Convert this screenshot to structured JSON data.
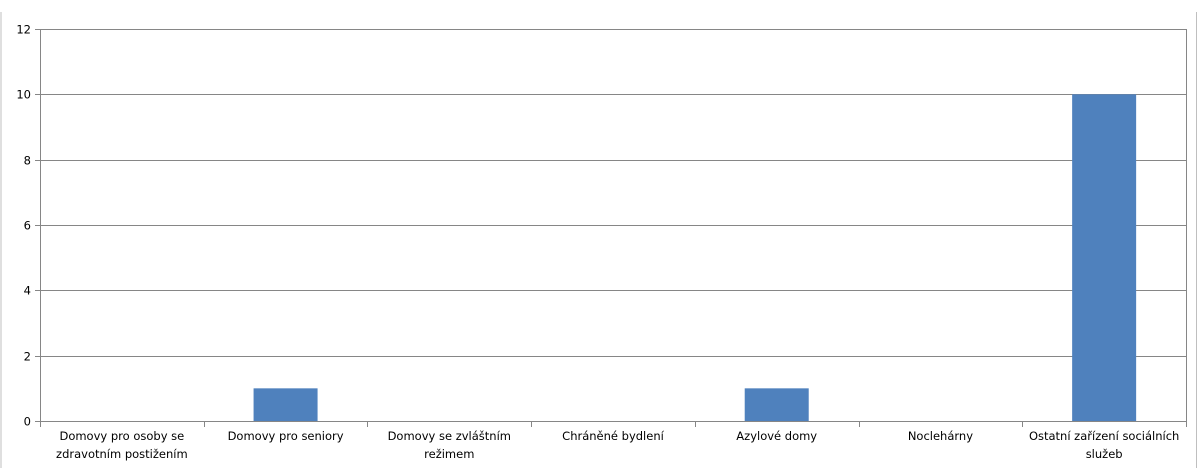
{
  "chart_data": {
    "type": "bar",
    "title": "",
    "xlabel": "",
    "ylabel": "",
    "categories": [
      [
        "Domovy pro osoby se",
        "zdravotním postižením"
      ],
      [
        "Domovy pro seniory"
      ],
      [
        "Domovy se zvláštním",
        "režimem"
      ],
      [
        "Chráněné bydlení"
      ],
      [
        "Azylové domy"
      ],
      [
        "Noclehárny"
      ],
      [
        "Ostatní zařízení sociálních",
        "služeb"
      ]
    ],
    "values": [
      0,
      1,
      0,
      0,
      1,
      0,
      10
    ],
    "ylim": [
      0,
      12
    ],
    "yticks": [
      "0",
      "2",
      "4",
      "6",
      "8",
      "10",
      "12"
    ],
    "grid": true,
    "legend": "none",
    "bar_color": "#4f81bd"
  }
}
